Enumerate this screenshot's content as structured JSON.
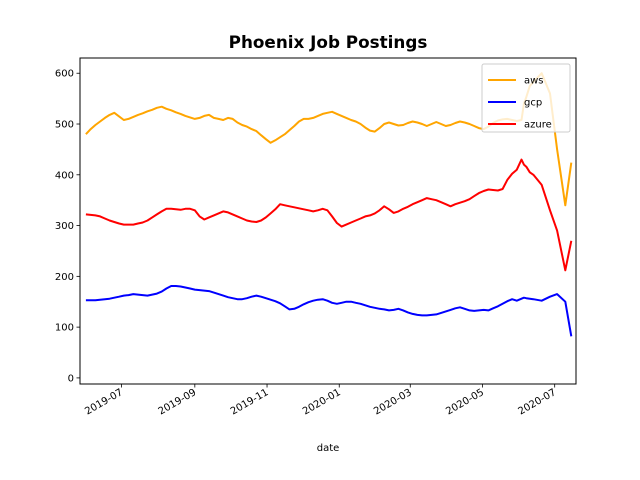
{
  "chart_data": {
    "type": "line",
    "title": "Phoenix Job Postings",
    "xlabel": "date",
    "xlabel_color": "#8b0000",
    "ylabel": "",
    "ylim": [
      -12,
      630
    ],
    "xlim": [
      "2019-05-27",
      "2020-07-19"
    ],
    "grid": false,
    "legend_position": "top-right",
    "yticks": [
      0,
      100,
      200,
      300,
      400,
      500,
      600
    ],
    "xticks": [
      "2019-07",
      "2019-09",
      "2019-11",
      "2020-01",
      "2020-03",
      "2020-05",
      "2020-07"
    ],
    "x": [
      "2019-06-01",
      "2019-06-05",
      "2019-06-09",
      "2019-06-13",
      "2019-06-17",
      "2019-06-21",
      "2019-06-25",
      "2019-06-29",
      "2019-07-03",
      "2019-07-07",
      "2019-07-11",
      "2019-07-15",
      "2019-07-19",
      "2019-07-23",
      "2019-07-27",
      "2019-07-31",
      "2019-08-04",
      "2019-08-08",
      "2019-08-12",
      "2019-08-16",
      "2019-08-20",
      "2019-08-24",
      "2019-08-28",
      "2019-09-01",
      "2019-09-05",
      "2019-09-09",
      "2019-09-13",
      "2019-09-17",
      "2019-09-21",
      "2019-09-25",
      "2019-09-29",
      "2019-10-03",
      "2019-10-07",
      "2019-10-11",
      "2019-10-15",
      "2019-10-19",
      "2019-10-23",
      "2019-10-27",
      "2019-10-31",
      "2019-11-04",
      "2019-11-08",
      "2019-11-12",
      "2019-11-16",
      "2019-11-20",
      "2019-11-24",
      "2019-11-28",
      "2019-12-02",
      "2019-12-06",
      "2019-12-10",
      "2019-12-14",
      "2019-12-18",
      "2019-12-22",
      "2019-12-26",
      "2019-12-30",
      "2020-01-03",
      "2020-01-07",
      "2020-01-11",
      "2020-01-15",
      "2020-01-19",
      "2020-01-23",
      "2020-01-27",
      "2020-01-31",
      "2020-02-04",
      "2020-02-08",
      "2020-02-12",
      "2020-02-16",
      "2020-02-20",
      "2020-02-24",
      "2020-02-28",
      "2020-03-03",
      "2020-03-07",
      "2020-03-11",
      "2020-03-15",
      "2020-03-19",
      "2020-03-23",
      "2020-03-27",
      "2020-03-31",
      "2020-04-04",
      "2020-04-08",
      "2020-04-12",
      "2020-04-16",
      "2020-04-20",
      "2020-04-24",
      "2020-04-28",
      "2020-05-02",
      "2020-05-06",
      "2020-05-10",
      "2020-05-14",
      "2020-05-18",
      "2020-05-22",
      "2020-05-26",
      "2020-05-30",
      "2020-06-03",
      "2020-06-05",
      "2020-06-07",
      "2020-06-10",
      "2020-06-13",
      "2020-06-20",
      "2020-06-27",
      "2020-07-03",
      "2020-07-10",
      "2020-07-15"
    ],
    "series": [
      {
        "name": "aws",
        "color": "#ffa500",
        "values": [
          480,
          490,
          498,
          505,
          512,
          518,
          522,
          515,
          508,
          510,
          514,
          518,
          521,
          525,
          528,
          532,
          534,
          530,
          527,
          523,
          520,
          516,
          513,
          510,
          512,
          516,
          518,
          512,
          510,
          508,
          512,
          510,
          503,
          498,
          495,
          490,
          486,
          478,
          470,
          463,
          468,
          474,
          480,
          488,
          496,
          505,
          510,
          510,
          512,
          516,
          520,
          522,
          524,
          520,
          516,
          512,
          508,
          505,
          500,
          493,
          487,
          485,
          492,
          500,
          503,
          500,
          497,
          498,
          502,
          505,
          503,
          500,
          496,
          500,
          504,
          500,
          496,
          498,
          502,
          505,
          503,
          500,
          496,
          492,
          490,
          495,
          502,
          507,
          509,
          510,
          508,
          506,
          508,
          540,
          553,
          575,
          583,
          600,
          560,
          450,
          340,
          424
        ]
      },
      {
        "name": "gcp",
        "color": "#0000ff",
        "values": [
          153,
          153,
          153,
          154,
          155,
          156,
          158,
          160,
          162,
          163,
          165,
          164,
          163,
          162,
          164,
          166,
          170,
          176,
          181,
          181,
          180,
          178,
          176,
          174,
          173,
          172,
          171,
          168,
          165,
          162,
          159,
          157,
          155,
          155,
          157,
          160,
          162,
          160,
          157,
          154,
          151,
          147,
          141,
          135,
          136,
          140,
          145,
          149,
          152,
          154,
          155,
          152,
          148,
          146,
          148,
          150,
          150,
          148,
          146,
          143,
          140,
          138,
          136,
          135,
          133,
          134,
          136,
          133,
          129,
          126,
          124,
          123,
          123,
          124,
          125,
          128,
          131,
          134,
          137,
          139,
          136,
          133,
          132,
          133,
          134,
          133,
          137,
          141,
          146,
          151,
          155,
          152,
          156,
          158,
          157,
          156,
          155,
          152,
          160,
          165,
          150,
          82
        ]
      },
      {
        "name": "azure",
        "color": "#ff0000",
        "values": [
          322,
          321,
          320,
          318,
          314,
          310,
          307,
          304,
          302,
          302,
          302,
          304,
          306,
          310,
          316,
          322,
          328,
          333,
          333,
          332,
          331,
          333,
          333,
          330,
          318,
          312,
          316,
          320,
          324,
          328,
          326,
          322,
          318,
          314,
          310,
          308,
          307,
          310,
          316,
          324,
          332,
          342,
          340,
          338,
          336,
          334,
          332,
          330,
          328,
          330,
          333,
          330,
          318,
          305,
          298,
          302,
          306,
          310,
          314,
          318,
          320,
          324,
          330,
          338,
          332,
          325,
          328,
          333,
          337,
          342,
          346,
          350,
          354,
          352,
          350,
          346,
          342,
          338,
          342,
          345,
          348,
          352,
          358,
          364,
          368,
          371,
          370,
          369,
          372,
          390,
          402,
          410,
          430,
          420,
          416,
          405,
          400,
          380,
          330,
          290,
          212,
          270
        ]
      }
    ]
  }
}
